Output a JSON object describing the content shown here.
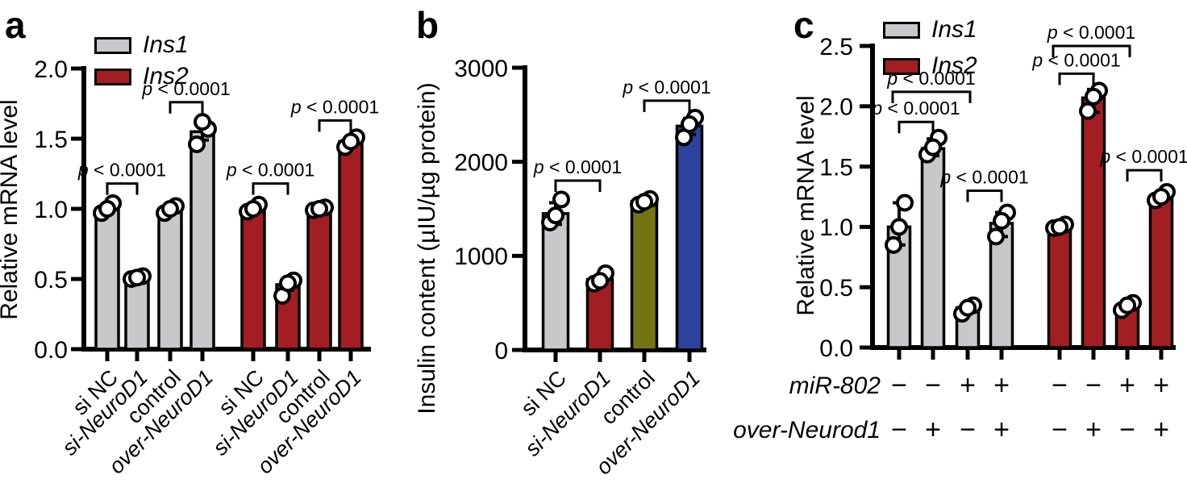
{
  "figure": {
    "background": "#ffffff",
    "panels": [
      {
        "letter": "a",
        "ylabel": "Relative mRNA level",
        "legend": [
          {
            "label": "Ins1",
            "color": "#c7c8c9"
          },
          {
            "label": "Ins2",
            "color": "#a31e22"
          }
        ]
      },
      {
        "letter": "b",
        "ylabel": "Insulin content (µIU/µg protein)",
        "legend": []
      },
      {
        "letter": "c",
        "ylabel": "Relative mRNA level",
        "legend": [
          {
            "label": "Ins1",
            "color": "#c7c8c9"
          },
          {
            "label": "Ins2",
            "color": "#a31e22"
          }
        ]
      }
    ]
  },
  "chart_data": [
    {
      "type": "bar",
      "panel": "a",
      "title": "",
      "ylabel": "Relative mRNA level",
      "ylim": [
        0,
        2.0
      ],
      "yticks": [
        {
          "value": 0,
          "label": "0.0"
        },
        {
          "value": 0.5,
          "label": "0.5"
        },
        {
          "value": 1.0,
          "label": "1.0"
        },
        {
          "value": 1.5,
          "label": "1.5"
        },
        {
          "value": 2.0,
          "label": "2.0"
        }
      ],
      "grid": false,
      "legend_position": "top-left",
      "series_legend": [
        {
          "name": "Ins1",
          "color": "#c7c8c9"
        },
        {
          "name": "Ins2",
          "color": "#a31e22"
        }
      ],
      "categories": [
        {
          "label": "si NC",
          "italic": false
        },
        {
          "label": "si-NeuroD1",
          "italic": true
        },
        {
          "label": "control",
          "italic": false
        },
        {
          "label": "over-NeuroD1",
          "italic": true
        },
        {
          "label": "si NC",
          "italic": false
        },
        {
          "label": "si-NeuroD1",
          "italic": true
        },
        {
          "label": "control",
          "italic": false
        },
        {
          "label": "over-NeuroD1",
          "italic": true
        }
      ],
      "bars": [
        {
          "series": "Ins1",
          "value": 1.0,
          "color": "#c7c8c9",
          "points": [
            0.97,
            1.04,
            1.0
          ],
          "error": null
        },
        {
          "series": "Ins1",
          "value": 0.51,
          "color": "#c7c8c9",
          "points": [
            0.5,
            0.52,
            0.51
          ],
          "error": null
        },
        {
          "series": "Ins1",
          "value": 1.0,
          "color": "#c7c8c9",
          "points": [
            0.97,
            1.02,
            1.0
          ],
          "error": null
        },
        {
          "series": "Ins1",
          "value": 1.55,
          "color": "#c7c8c9",
          "points": [
            1.46,
            1.57,
            1.62
          ],
          "error": [
            1.49,
            1.61
          ]
        },
        {
          "series": "Ins2",
          "value": 1.0,
          "color": "#a31e22",
          "points": [
            0.98,
            1.03,
            1.0
          ],
          "error": null
        },
        {
          "series": "Ins2",
          "value": 0.46,
          "color": "#a31e22",
          "points": [
            0.38,
            0.49,
            0.47
          ],
          "error": [
            0.42,
            0.5
          ]
        },
        {
          "series": "Ins2",
          "value": 1.0,
          "color": "#a31e22",
          "points": [
            0.99,
            1.01,
            1.0
          ],
          "error": null
        },
        {
          "series": "Ins2",
          "value": 1.48,
          "color": "#a31e22",
          "points": [
            1.44,
            1.51,
            1.48
          ],
          "error": [
            1.45,
            1.51
          ]
        }
      ],
      "significance": [
        {
          "from": 0,
          "to": 1,
          "at": 1.18,
          "label": "p < 0.0001"
        },
        {
          "from": 2,
          "to": 3,
          "at": 1.76,
          "label": "p < 0.0001"
        },
        {
          "from": 4,
          "to": 5,
          "at": 1.18,
          "label": "p < 0.0001"
        },
        {
          "from": 6,
          "to": 7,
          "at": 1.63,
          "label": "p < 0.0001"
        }
      ]
    },
    {
      "type": "bar",
      "panel": "b",
      "title": "",
      "ylabel": "Insulin content (µIU/µg protein)",
      "ylim": [
        0,
        3000
      ],
      "yticks": [
        {
          "value": 0,
          "label": "0"
        },
        {
          "value": 1000,
          "label": "1000"
        },
        {
          "value": 2000,
          "label": "2000"
        },
        {
          "value": 3000,
          "label": "3000"
        }
      ],
      "grid": false,
      "legend_position": "none",
      "categories": [
        {
          "label": "si NC",
          "italic": false
        },
        {
          "label": "si-NeuroD1",
          "italic": true
        },
        {
          "label": "control",
          "italic": false
        },
        {
          "label": "over-NeuroD1",
          "italic": true
        }
      ],
      "bars": [
        {
          "series": "si NC",
          "value": 1450,
          "color": "#c7c8c9",
          "points": [
            1355,
            1600,
            1430
          ],
          "error": [
            1335,
            1565
          ]
        },
        {
          "series": "si-NeuroD1",
          "value": 750,
          "color": "#a31e22",
          "points": [
            705,
            815,
            735
          ],
          "error": null
        },
        {
          "series": "control",
          "value": 1580,
          "color": "#747413",
          "points": [
            1545,
            1605,
            1575
          ],
          "error": null
        },
        {
          "series": "over-NeuroD1",
          "value": 2380,
          "color": "#2c429c",
          "points": [
            2260,
            2470,
            2400
          ],
          "error": [
            2290,
            2460
          ]
        }
      ],
      "significance": [
        {
          "from": 0,
          "to": 1,
          "at": 1800,
          "label": "p < 0.0001"
        },
        {
          "from": 2,
          "to": 3,
          "at": 2650,
          "label": "p < 0.0001"
        }
      ]
    },
    {
      "type": "bar",
      "panel": "c",
      "title": "",
      "ylabel": "Relative mRNA level",
      "ylim": [
        0,
        2.5
      ],
      "yticks": [
        {
          "value": 0,
          "label": "0.0"
        },
        {
          "value": 0.5,
          "label": "0.5"
        },
        {
          "value": 1.0,
          "label": "1.0"
        },
        {
          "value": 1.5,
          "label": "1.5"
        },
        {
          "value": 2.0,
          "label": "2.0"
        },
        {
          "value": 2.5,
          "label": "2.5"
        }
      ],
      "grid": false,
      "legend_position": "top-left",
      "series_legend": [
        {
          "name": "Ins1",
          "color": "#c7c8c9"
        },
        {
          "name": "Ins2",
          "color": "#a31e22"
        }
      ],
      "categories": [],
      "row_annotations": [
        {
          "label": "miR-802",
          "italic": true,
          "signs": [
            "−",
            "−",
            "+",
            "+",
            "−",
            "−",
            "+",
            "+"
          ]
        },
        {
          "label": "over-Neurod1",
          "italic": true,
          "signs": [
            "−",
            "+",
            "−",
            "+",
            "−",
            "+",
            "−",
            "+"
          ]
        }
      ],
      "bars": [
        {
          "series": "Ins1",
          "value": 1.0,
          "color": "#c7c8c9",
          "points": [
            0.85,
            1.2,
            1.0
          ],
          "error": [
            0.85,
            1.2
          ]
        },
        {
          "series": "Ins1",
          "value": 1.65,
          "color": "#c7c8c9",
          "points": [
            1.6,
            1.74,
            1.66
          ],
          "error": [
            1.59,
            1.73
          ]
        },
        {
          "series": "Ins1",
          "value": 0.33,
          "color": "#c7c8c9",
          "points": [
            0.28,
            0.35,
            0.33
          ],
          "error": [
            0.29,
            0.36
          ]
        },
        {
          "series": "Ins1",
          "value": 1.03,
          "color": "#c7c8c9",
          "points": [
            0.92,
            1.12,
            1.05
          ],
          "error": [
            0.92,
            1.12
          ]
        },
        {
          "series": "Ins2",
          "value": 1.0,
          "color": "#a31e22",
          "points": [
            0.99,
            1.02,
            1.0
          ],
          "error": null
        },
        {
          "series": "Ins2",
          "value": 2.07,
          "color": "#a31e22",
          "points": [
            1.96,
            2.13,
            2.08
          ],
          "error": [
            1.95,
            2.14
          ]
        },
        {
          "series": "Ins2",
          "value": 0.35,
          "color": "#a31e22",
          "points": [
            0.31,
            0.37,
            0.35
          ],
          "error": [
            0.31,
            0.38
          ]
        },
        {
          "series": "Ins2",
          "value": 1.25,
          "color": "#a31e22",
          "points": [
            1.22,
            1.29,
            1.25
          ],
          "error": [
            1.21,
            1.29
          ]
        }
      ],
      "significance": [
        {
          "from": 0,
          "to": 1,
          "at": 1.87,
          "label": "p < 0.0001"
        },
        {
          "from": 0,
          "to": 2,
          "at": 2.12,
          "label": "p < 0.0001"
        },
        {
          "from": 2,
          "to": 3,
          "at": 1.3,
          "label": "p < 0.0001"
        },
        {
          "from": 4,
          "to": 5,
          "at": 2.27,
          "label": "p < 0.0001"
        },
        {
          "from": 4,
          "to": 6,
          "at": 2.5,
          "label": "p < 0.0001"
        },
        {
          "from": 6,
          "to": 7,
          "at": 1.47,
          "label": "p < 0.0001"
        }
      ]
    }
  ]
}
